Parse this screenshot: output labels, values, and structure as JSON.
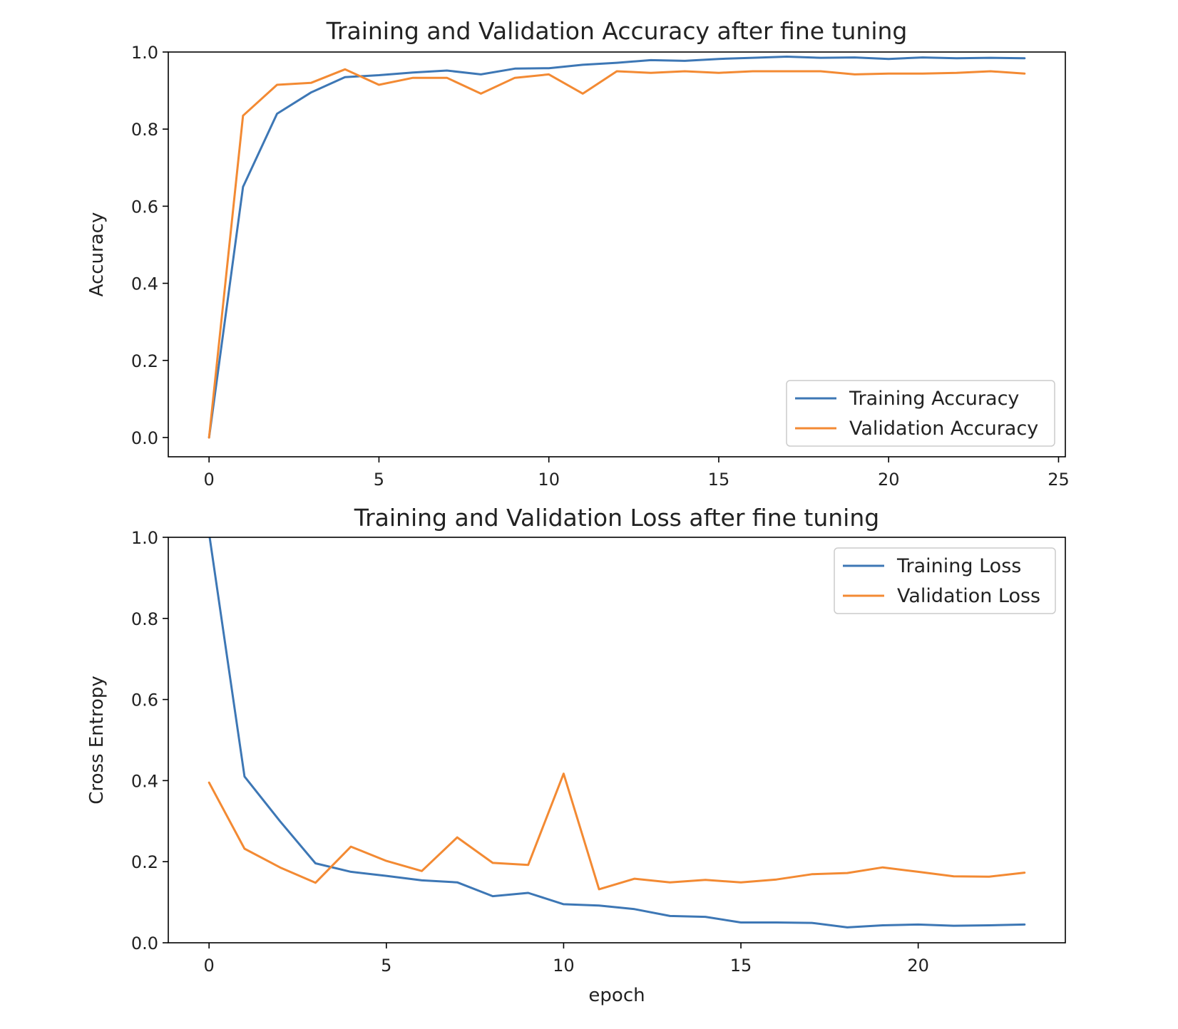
{
  "colors": {
    "training": "#3d77b5",
    "validation": "#f38a33"
  },
  "chart_data": [
    {
      "type": "line",
      "title": "Training and Validation Accuracy after fine tuning",
      "xlabel": "",
      "ylabel": "Accuracy",
      "xlim": [
        -1.2,
        25.2
      ],
      "ylim": [
        -0.05,
        1.0
      ],
      "xticks": [
        0,
        5,
        10,
        15,
        20,
        25
      ],
      "yticks": [
        0.0,
        0.2,
        0.4,
        0.6,
        0.8,
        1.0
      ],
      "grid": false,
      "legend_position": "lower right",
      "x": [
        0,
        1,
        2,
        3,
        4,
        5,
        6,
        7,
        8,
        9,
        10,
        11,
        12,
        13,
        14,
        15,
        16,
        17,
        18,
        19,
        20,
        21,
        22,
        23,
        24
      ],
      "series": [
        {
          "name": "Training Accuracy",
          "color": "#3d77b5",
          "values": [
            0.0,
            0.65,
            0.84,
            0.895,
            0.935,
            0.94,
            0.947,
            0.952,
            0.942,
            0.957,
            0.958,
            0.967,
            0.972,
            0.979,
            0.977,
            0.982,
            0.985,
            0.988,
            0.985,
            0.986,
            0.982,
            0.986,
            0.984,
            0.985,
            0.984
          ]
        },
        {
          "name": "Validation Accuracy",
          "color": "#f38a33",
          "values": [
            0.0,
            0.835,
            0.915,
            0.92,
            0.955,
            0.915,
            0.933,
            0.933,
            0.892,
            0.933,
            0.942,
            0.892,
            0.95,
            0.946,
            0.95,
            0.946,
            0.95,
            0.95,
            0.95,
            0.942,
            0.944,
            0.944,
            0.946,
            0.95,
            0.944
          ]
        }
      ]
    },
    {
      "type": "line",
      "title": "Training and Validation Loss after fine tuning",
      "xlabel": "epoch",
      "ylabel": "Cross Entropy",
      "xlim": [
        -1.15,
        24.15
      ],
      "ylim": [
        0.0,
        1.0
      ],
      "xticks": [
        0,
        5,
        10,
        15,
        20
      ],
      "yticks": [
        0.0,
        0.2,
        0.4,
        0.6,
        0.8,
        1.0
      ],
      "grid": false,
      "legend_position": "upper right",
      "x": [
        0,
        1,
        2,
        3,
        4,
        5,
        6,
        7,
        8,
        9,
        10,
        11,
        12,
        13,
        14,
        15,
        16,
        17,
        18,
        19,
        20,
        21,
        22,
        23
      ],
      "series": [
        {
          "name": "Training Loss",
          "color": "#3d77b5",
          "values": [
            1.01,
            0.41,
            0.3,
            0.196,
            0.175,
            0.165,
            0.154,
            0.149,
            0.115,
            0.123,
            0.095,
            0.092,
            0.083,
            0.066,
            0.064,
            0.05,
            0.05,
            0.049,
            0.038,
            0.043,
            0.045,
            0.042,
            0.043,
            0.045
          ]
        },
        {
          "name": "Validation Loss",
          "color": "#f38a33",
          "values": [
            0.395,
            0.232,
            0.186,
            0.148,
            0.237,
            0.202,
            0.177,
            0.26,
            0.197,
            0.192,
            0.417,
            0.132,
            0.158,
            0.149,
            0.155,
            0.149,
            0.156,
            0.169,
            0.172,
            0.186,
            0.175,
            0.164,
            0.163,
            0.173
          ]
        }
      ]
    }
  ]
}
